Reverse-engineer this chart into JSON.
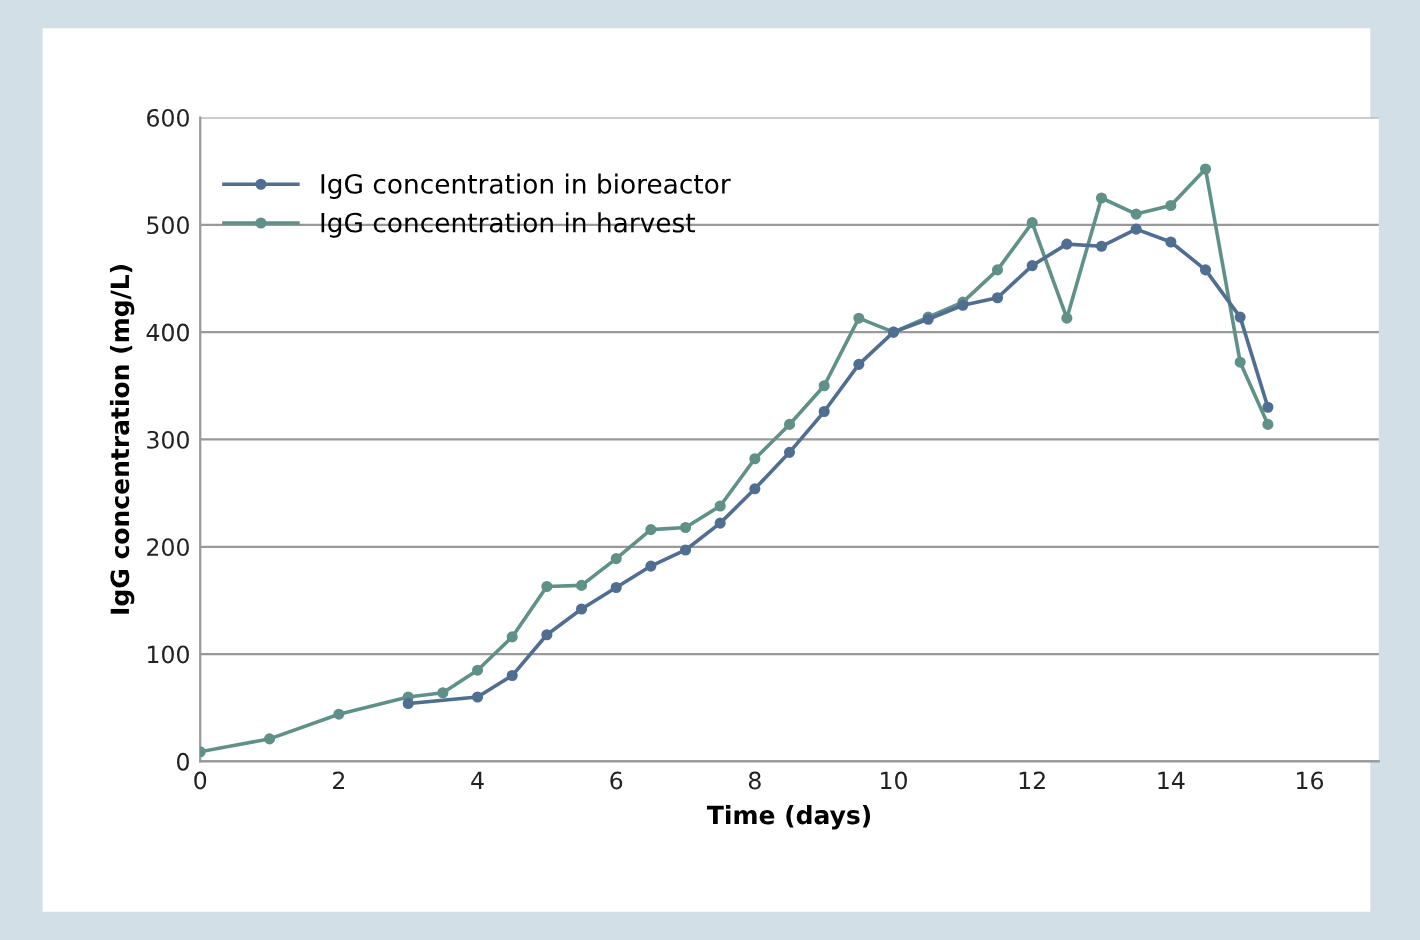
{
  "chart_data": {
    "type": "line",
    "xlabel": "Time (days)",
    "ylabel": "IgG concentration (mg/L)",
    "xlim": [
      0,
      17
    ],
    "xticks": [
      0,
      2,
      4,
      6,
      8,
      10,
      12,
      14,
      16
    ],
    "ylim": [
      0,
      600
    ],
    "yticks": [
      0,
      100,
      200,
      300,
      400,
      500,
      600
    ],
    "grid": "y",
    "legend": "top left",
    "marker": "circle",
    "line_style": "solid",
    "series": [
      {
        "name": "IgG concentration in bioreactor",
        "color": "#4f6e91",
        "x": [
          3,
          4,
          4.5,
          5,
          5.5,
          6,
          6.5,
          7,
          7.5,
          8,
          8.5,
          9,
          9.5,
          10,
          10.5,
          11,
          11.5,
          12,
          12.5,
          13,
          13.5,
          14,
          14.5,
          15,
          15.4
        ],
        "values": [
          54,
          60,
          80,
          118,
          142,
          162,
          182,
          197,
          222,
          254,
          288,
          326,
          370,
          400,
          412,
          425,
          432,
          462,
          482,
          480,
          496,
          484,
          458,
          414,
          330
        ]
      },
      {
        "name": "IgG concentration in harvest",
        "color": "#5f9189",
        "x": [
          0,
          1,
          2,
          3,
          3.5,
          4,
          4.5,
          5,
          5.5,
          6,
          6.5,
          7,
          7.5,
          8,
          8.5,
          9,
          9.5,
          10,
          10.5,
          11,
          11.5,
          12,
          12.5,
          13,
          13.5,
          14,
          14.5,
          15,
          15.4
        ],
        "values": [
          9,
          21,
          44,
          60,
          64,
          85,
          116,
          163,
          164,
          189,
          216,
          218,
          238,
          282,
          314,
          350,
          413,
          400,
          414,
          428,
          458,
          502,
          413,
          525,
          510,
          518,
          552,
          372,
          314
        ]
      }
    ]
  }
}
